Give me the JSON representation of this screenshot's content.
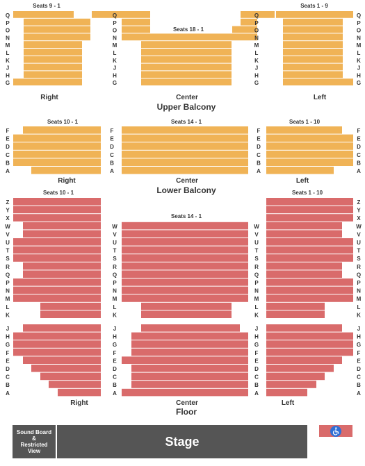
{
  "colors": {
    "balcony": "#f0b356",
    "floor": "#d96b6b",
    "stage": "#555555",
    "text": "#333333"
  },
  "stage_label": "Stage",
  "sound_board_label": [
    "Sound Board",
    "&",
    "Restricted",
    "View"
  ],
  "accessibility_icon": "wheelchair-icon",
  "sections": [
    {
      "id": "upper-balcony",
      "title": "Upper Balcony",
      "side_labels": {
        "right": "Right",
        "center": "Center",
        "left": "Left"
      },
      "seat_ranges": {
        "right": "Seats 9 - 1",
        "center": "Seats 18 - 1",
        "left": "Seats 1 - 9"
      },
      "rows": [
        "Q",
        "P",
        "O",
        "N",
        "M",
        "L",
        "K",
        "J",
        "H",
        "G"
      ]
    },
    {
      "id": "lower-balcony",
      "title": "Lower Balcony",
      "side_labels": {
        "right": "Right",
        "center": "Center",
        "left": "Left"
      },
      "seat_ranges": {
        "right": "Seats 10 - 1",
        "center": "Seats 14 - 1",
        "left": "Seats 1 - 10"
      },
      "rows": [
        "F",
        "E",
        "D",
        "C",
        "B",
        "A"
      ]
    },
    {
      "id": "floor",
      "title": "Floor",
      "side_labels": {
        "right": "Right",
        "center": "Center",
        "left": "Left"
      },
      "seat_ranges": {
        "right": "Seats 10 - 1",
        "center": "Seats 14 - 1",
        "left": "Seats 1 - 10"
      },
      "rows_upper": [
        "Z",
        "Y",
        "X",
        "W",
        "V",
        "U",
        "T",
        "S",
        "R",
        "Q",
        "P",
        "N",
        "M",
        "L",
        "K"
      ],
      "rows_lower": [
        "J",
        "H",
        "G",
        "F",
        "E",
        "D",
        "C",
        "B",
        "A"
      ]
    }
  ]
}
